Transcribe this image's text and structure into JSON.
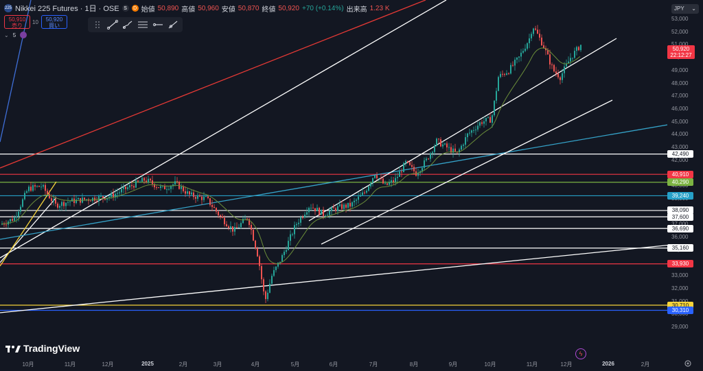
{
  "header": {
    "symbol_icon": "225",
    "title": "Nikkei 225 Futures · 1日 · OSE",
    "status_1": "S",
    "status_2": "D",
    "open_label": "始値",
    "open_value": "50,890",
    "high_label": "高値",
    "high_value": "50,960",
    "low_label": "安値",
    "low_value": "50,870",
    "close_label": "終値",
    "close_value": "50,920",
    "change": "+70 (+0.14%)",
    "volume_label": "出来高",
    "volume_value": "1.23 K"
  },
  "trade": {
    "sell_price": "50,910",
    "sell_label": "売り",
    "spread": "10",
    "buy_price": "50,920",
    "buy_label": "買い"
  },
  "indicator": {
    "label": "5"
  },
  "drawing_toolbar": {
    "icons": [
      "drag-handle-icon",
      "trend-line-icon",
      "brush-icon",
      "parallel-channel-icon",
      "horizontal-ray-icon",
      "ray-icon"
    ]
  },
  "currency": "JPY",
  "price_ticks": [
    "53,000",
    "52,000",
    "51,000",
    "50,000",
    "49,000",
    "48,000",
    "47,000",
    "46,000",
    "45,000",
    "44,000",
    "43,000",
    "42,000",
    "41,000",
    "40,000",
    "39,000",
    "38,000",
    "37,000",
    "36,000",
    "35,000",
    "34,000",
    "33,000",
    "32,000",
    "31,000",
    "30,000",
    "29,000"
  ],
  "time_ticks": [
    "10月",
    "11月",
    "12月",
    "2025",
    "2月",
    "3月",
    "4月",
    "5月",
    "6月",
    "7月",
    "8月",
    "9月",
    "10月",
    "11月",
    "12月",
    "2026",
    "2月"
  ],
  "price_labels": [
    {
      "value": "42,490",
      "bg": "#ffffff",
      "fg": "#131722"
    },
    {
      "value": "40,910",
      "bg": "#f23645",
      "fg": "#ffffff"
    },
    {
      "value": "40,290",
      "bg": "#7cb342",
      "fg": "#ffffff"
    },
    {
      "value": "39,240",
      "bg": "#26a0c8",
      "fg": "#ffffff"
    },
    {
      "value": "38,090",
      "bg": "#ffffff",
      "fg": "#131722"
    },
    {
      "value": "37,600",
      "bg": "#ffffff",
      "fg": "#131722"
    },
    {
      "value": "36,690",
      "bg": "#ffffff",
      "fg": "#131722"
    },
    {
      "value": "35,160",
      "bg": "#ffffff",
      "fg": "#131722"
    },
    {
      "value": "33,930",
      "bg": "#f23645",
      "fg": "#ffffff"
    },
    {
      "value": "30,710",
      "bg": "#f5d33b",
      "fg": "#131722"
    },
    {
      "value": "30,310",
      "bg": "#2962ff",
      "fg": "#ffffff"
    }
  ],
  "last_price": {
    "value": "50,920",
    "countdown": "22:12:27"
  },
  "brand": "TradingView",
  "colors": {
    "bg": "#131722",
    "up": "#26a69a",
    "down": "#ef5350",
    "ma": "#6b8e3a"
  }
}
